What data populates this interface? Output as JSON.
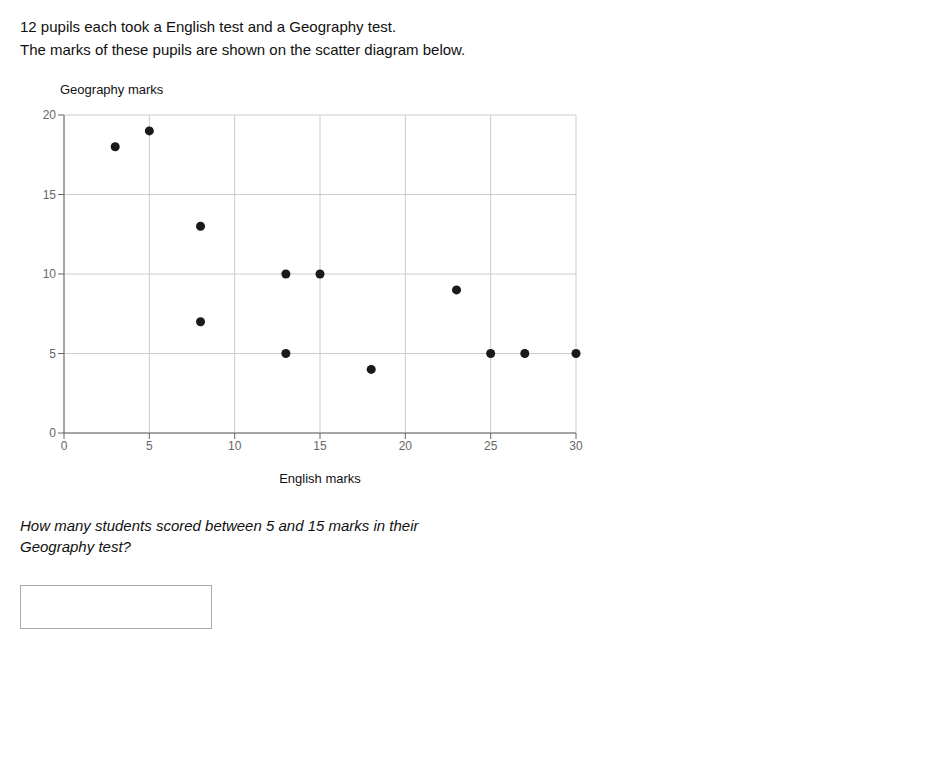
{
  "chart_data": {
    "type": "scatter",
    "title": "12 pupils each took a English test and a Geography test.",
    "subtitle": "The marks of these pupils are shown on the scatter diagram below.",
    "xlabel": "English marks",
    "ylabel": "Geography marks",
    "x": [
      3,
      5,
      8,
      8,
      13,
      15,
      13,
      18,
      23,
      25,
      27,
      30
    ],
    "values": [
      18,
      19,
      13,
      7,
      10,
      10,
      5,
      4,
      9,
      5,
      5,
      5
    ],
    "color": "#1a1a1a",
    "xlim": [
      0,
      30
    ],
    "ylim": [
      0,
      20
    ],
    "xticks": [
      0,
      5,
      10,
      15,
      20,
      25,
      30
    ],
    "yticks": [
      0,
      5,
      10,
      15,
      20
    ],
    "grid": true,
    "annotations": [
      "How many students scored between 5 and 15 marks in their",
      "Geography test?"
    ]
  }
}
